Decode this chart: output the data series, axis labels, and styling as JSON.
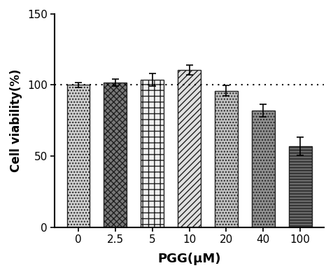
{
  "categories": [
    "0",
    "2.5",
    "5",
    "10",
    "20",
    "40",
    "100"
  ],
  "values": [
    100.0,
    101.5,
    103.5,
    110.5,
    96.0,
    82.0,
    57.0
  ],
  "errors": [
    1.5,
    2.5,
    4.5,
    3.5,
    3.5,
    4.5,
    6.5
  ],
  "face_colors": [
    "#d4d4d4",
    "#808080",
    "#ffffff",
    "#e8e8e8",
    "#c8c8c8",
    "#909090",
    "#707070"
  ],
  "hatch_patterns": [
    "....",
    "xxxx",
    "++",
    "////",
    "....",
    "....",
    "-----"
  ],
  "bar_edgecolor": "#222222",
  "hline_y": 100,
  "xlabel": "PGG(μM)",
  "ylabel": "Cell viability(%)",
  "ylim": [
    0,
    150
  ],
  "yticks": [
    0,
    50,
    100,
    150
  ],
  "bar_width": 0.62,
  "xlabel_fontsize": 13,
  "ylabel_fontsize": 12,
  "tick_fontsize": 11
}
